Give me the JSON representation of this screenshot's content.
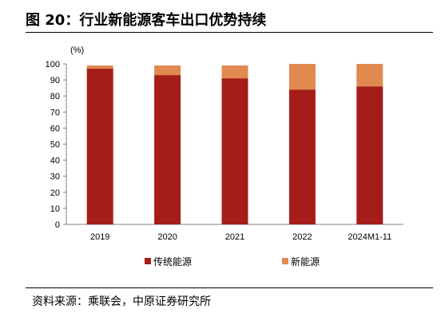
{
  "header": {
    "title": "图 20：行业新能源客车出口优势持续"
  },
  "footer": {
    "source": "资料来源：乘联会，中原证券研究所"
  },
  "chart_data": {
    "type": "bar",
    "stacked": true,
    "unit_label": "(%)",
    "categories": [
      "2019",
      "2020",
      "2021",
      "2022",
      "2024M1-11"
    ],
    "series": [
      {
        "name": "传统能源",
        "color": "#A51D18",
        "values": [
          97,
          93,
          91,
          84,
          86
        ]
      },
      {
        "name": "新能源",
        "color": "#E08A50",
        "values": [
          2,
          6,
          8,
          16,
          14
        ]
      }
    ],
    "ylim": [
      0,
      100
    ],
    "yticks": [
      0,
      10,
      20,
      30,
      40,
      50,
      60,
      70,
      80,
      90,
      100
    ],
    "grid": false,
    "legend_position": "bottom"
  }
}
